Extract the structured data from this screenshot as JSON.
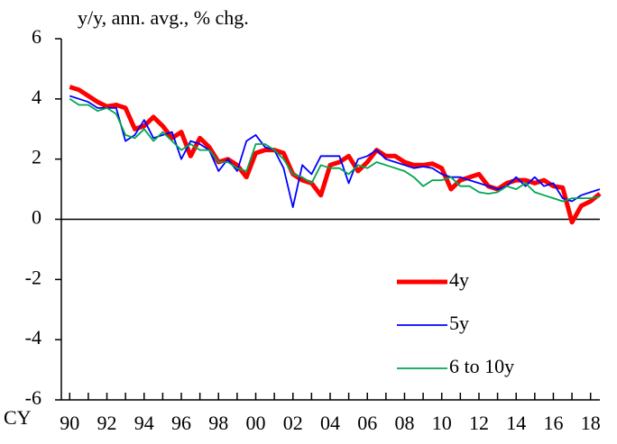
{
  "chart_data": {
    "type": "line",
    "title": "y/y, ann. avg., % chg.",
    "x_label": "CY",
    "x": [
      1990,
      1990.5,
      1991,
      1991.5,
      1992,
      1992.5,
      1993,
      1993.5,
      1994,
      1994.5,
      1995,
      1995.5,
      1996,
      1996.5,
      1997,
      1997.5,
      1998,
      1998.5,
      1999,
      1999.5,
      2000,
      2000.5,
      2001,
      2001.5,
      2002,
      2002.5,
      2003,
      2003.5,
      2004,
      2004.5,
      2005,
      2005.5,
      2006,
      2006.5,
      2007,
      2007.5,
      2008,
      2008.5,
      2009,
      2009.5,
      2010,
      2010.5,
      2011,
      2011.5,
      2012,
      2012.5,
      2013,
      2013.5,
      2014,
      2014.5,
      2015,
      2015.5,
      2016,
      2016.5,
      2017,
      2017.5,
      2018,
      2018.5
    ],
    "series": [
      {
        "name": "4y",
        "color": "#ff0000",
        "width": 5,
        "values": [
          4.4,
          4.3,
          4.1,
          3.9,
          3.75,
          3.8,
          3.7,
          3.0,
          3.1,
          3.4,
          3.1,
          2.7,
          2.9,
          2.1,
          2.7,
          2.4,
          1.9,
          2.0,
          1.8,
          1.4,
          2.2,
          2.3,
          2.3,
          2.2,
          1.5,
          1.3,
          1.2,
          0.8,
          1.8,
          1.9,
          2.1,
          1.6,
          1.9,
          2.3,
          2.1,
          2.1,
          1.9,
          1.8,
          1.8,
          1.85,
          1.7,
          1.0,
          1.3,
          1.4,
          1.5,
          1.1,
          1.0,
          1.2,
          1.3,
          1.3,
          1.2,
          1.3,
          1.1,
          1.05,
          -0.1,
          0.45,
          0.6,
          0.85
        ]
      },
      {
        "name": "5y",
        "color": "#0000ff",
        "width": 1.8,
        "values": [
          4.1,
          4.0,
          3.9,
          3.7,
          3.7,
          3.7,
          2.6,
          2.8,
          3.3,
          2.7,
          2.8,
          2.9,
          2.0,
          2.6,
          2.5,
          2.3,
          1.6,
          2.0,
          1.6,
          2.6,
          2.8,
          2.4,
          2.3,
          1.7,
          0.4,
          1.8,
          1.5,
          2.1,
          2.1,
          2.1,
          1.2,
          2.0,
          2.1,
          2.3,
          2.0,
          1.9,
          1.8,
          1.7,
          1.75,
          1.7,
          1.5,
          1.4,
          1.4,
          1.3,
          1.2,
          1.1,
          1.0,
          1.1,
          1.4,
          1.1,
          1.4,
          1.1,
          1.2,
          0.7,
          0.6,
          0.8,
          0.9,
          1.0
        ]
      },
      {
        "name": "6 to 10y",
        "color": "#00a550",
        "width": 1.8,
        "values": [
          4.0,
          3.8,
          3.8,
          3.6,
          3.7,
          3.5,
          2.8,
          2.7,
          3.0,
          2.6,
          2.9,
          2.6,
          2.3,
          2.5,
          2.3,
          2.3,
          1.9,
          1.9,
          1.7,
          1.6,
          2.5,
          2.5,
          2.3,
          2.0,
          1.5,
          1.4,
          1.2,
          1.8,
          1.7,
          1.7,
          1.5,
          1.8,
          1.7,
          1.9,
          1.8,
          1.7,
          1.6,
          1.4,
          1.1,
          1.3,
          1.3,
          1.4,
          1.1,
          1.1,
          0.9,
          0.85,
          0.9,
          1.1,
          1.0,
          1.2,
          0.9,
          0.8,
          0.7,
          0.6,
          0.7,
          0.7,
          0.7,
          0.75
        ]
      }
    ],
    "xlim": [
      1989.55,
      2018.5
    ],
    "xticks": [
      {
        "value": 1990,
        "label": "90"
      },
      {
        "value": 1992,
        "label": "92"
      },
      {
        "value": 1994,
        "label": "94"
      },
      {
        "value": 1996,
        "label": "96"
      },
      {
        "value": 1998,
        "label": "98"
      },
      {
        "value": 2000,
        "label": "00"
      },
      {
        "value": 2002,
        "label": "02"
      },
      {
        "value": 2004,
        "label": "04"
      },
      {
        "value": 2006,
        "label": "06"
      },
      {
        "value": 2008,
        "label": "08"
      },
      {
        "value": 2010,
        "label": "10"
      },
      {
        "value": 2012,
        "label": "12"
      },
      {
        "value": 2014,
        "label": "14"
      },
      {
        "value": 2016,
        "label": "16"
      },
      {
        "value": 2018,
        "label": "18"
      }
    ],
    "xminorticks": [
      1991,
      1993,
      1995,
      1997,
      1999,
      2001,
      2003,
      2005,
      2007,
      2009,
      2011,
      2013,
      2015,
      2017
    ],
    "ylim": [
      -6,
      6
    ],
    "yticks": [
      -6,
      -4,
      -2,
      0,
      2,
      4,
      6
    ],
    "zero_line": true,
    "legend": "lower right"
  }
}
